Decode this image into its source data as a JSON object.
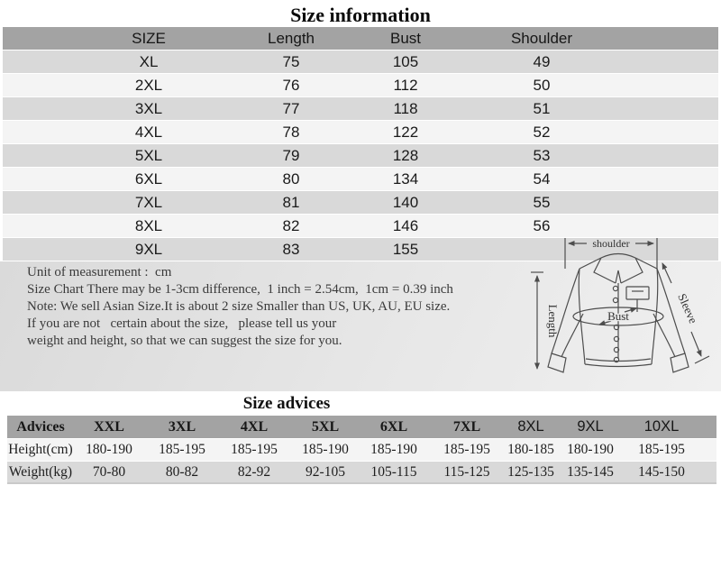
{
  "title": "Size information",
  "size_table": {
    "headers": [
      "SIZE",
      "Length",
      "Bust",
      "Shoulder"
    ],
    "rows": [
      [
        "XL",
        "75",
        "105",
        "49"
      ],
      [
        "2XL",
        "76",
        "112",
        "50"
      ],
      [
        "3XL",
        "77",
        "118",
        "51"
      ],
      [
        "4XL",
        "78",
        "122",
        "52"
      ],
      [
        "5XL",
        "79",
        "128",
        "53"
      ],
      [
        "6XL",
        "80",
        "134",
        "54"
      ],
      [
        "7XL",
        "81",
        "140",
        "55"
      ],
      [
        "8XL",
        "82",
        "146",
        "56"
      ],
      [
        "9XL",
        "83",
        "155",
        ""
      ]
    ]
  },
  "notes": {
    "lines": [
      "Unit of measurement :  cm",
      "Size Chart There may be 1-3cm difference,  1 inch = 2.54cm,  1cm = 0.39 inch",
      "Note: We sell Asian Size.It is about 2 size Smaller than US, UK, AU, EU size.",
      "If you are not   certain about the size,   please tell us your",
      "weight and height, so that we can suggest the size for you."
    ]
  },
  "diagram": {
    "labels": {
      "shoulder": "shoulder",
      "length": "Length",
      "bust": "Bust",
      "sleeve": "Sleeve"
    }
  },
  "advice_table": {
    "title": "Size advices",
    "headers": [
      "Advices",
      "XXL",
      "3XL",
      "4XL",
      "5XL",
      "6XL",
      "7XL",
      "8XL",
      "9XL",
      "10XL"
    ],
    "rows": [
      [
        "Height(cm)",
        "180-190",
        "185-195",
        "185-195",
        "185-190",
        "185-190",
        "185-195",
        "180-185",
        "180-190",
        "185-195"
      ],
      [
        "Weight(kg)",
        "70-80",
        "80-82",
        "82-92",
        "92-105",
        "105-115",
        "115-125",
        "125-135",
        "135-145",
        "145-150"
      ]
    ]
  },
  "colors": {
    "table_header_bg": "#a3a3a3",
    "row_dark": "#d9d9d9",
    "row_light": "#f4f4f4",
    "band_bg": "#e3e3e3",
    "text": "#1a1a1a",
    "note_text": "#3a3a3a"
  }
}
